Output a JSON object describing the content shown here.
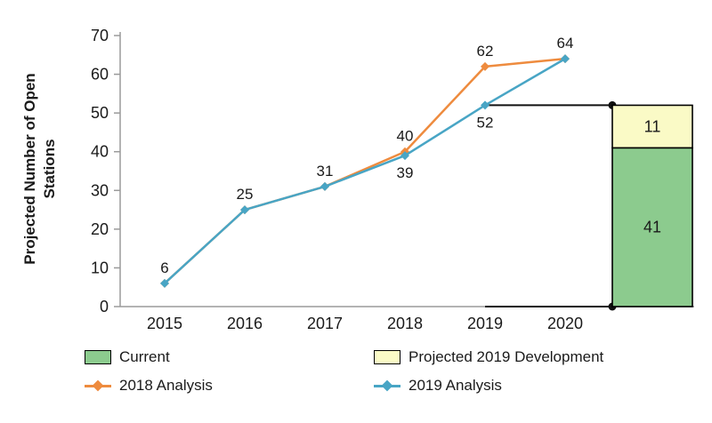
{
  "chart_data": {
    "type": "line",
    "title": "",
    "ylabel": "Projected Number of Open Stations",
    "xlabel": "",
    "ylim": [
      0,
      70
    ],
    "ytick_step": 10,
    "grid": false,
    "legend_position": "bottom",
    "categories": [
      "2015",
      "2016",
      "2017",
      "2018",
      "2019",
      "2020"
    ],
    "series": [
      {
        "name": "2018 Analysis",
        "color": "#EE8B3E",
        "values": [
          6,
          25,
          31,
          40,
          62,
          64
        ]
      },
      {
        "name": "2019 Analysis",
        "color": "#48A5C5",
        "values": [
          6,
          25,
          31,
          39,
          52,
          64
        ]
      }
    ],
    "point_labels": [
      {
        "xi": 0,
        "value": 6,
        "text": "6",
        "pos": "above"
      },
      {
        "xi": 1,
        "value": 25,
        "text": "25",
        "pos": "above"
      },
      {
        "xi": 2,
        "value": 31,
        "text": "31",
        "pos": "above"
      },
      {
        "xi": 3,
        "value": 40,
        "text": "40",
        "pos": "above"
      },
      {
        "xi": 3,
        "value": 39,
        "text": "39",
        "pos": "below"
      },
      {
        "xi": 4,
        "value": 62,
        "text": "62",
        "pos": "above"
      },
      {
        "xi": 4,
        "value": 52,
        "text": "52",
        "pos": "below"
      },
      {
        "xi": 5,
        "value": 64,
        "text": "64",
        "pos": "above"
      }
    ],
    "bar": {
      "total": 52,
      "outline_color": "#000000",
      "connector_color": "#111111",
      "segments": [
        {
          "name": "Current",
          "value": 41,
          "label": "41",
          "color": "#8CCB8E"
        },
        {
          "name": "Projected 2019 Development",
          "value": 11,
          "label": "11",
          "color": "#FAFAC6"
        }
      ]
    },
    "legend": [
      {
        "label": "Current",
        "type": "box",
        "color": "#8CCB8E"
      },
      {
        "label": "Projected 2019 Development",
        "type": "box",
        "color": "#FAFAC6"
      },
      {
        "label": "2018 Analysis",
        "type": "line",
        "color": "#EE8B3E"
      },
      {
        "label": "2019 Analysis",
        "type": "line",
        "color": "#48A5C5"
      }
    ],
    "axis_color": "#9a9a9a"
  }
}
